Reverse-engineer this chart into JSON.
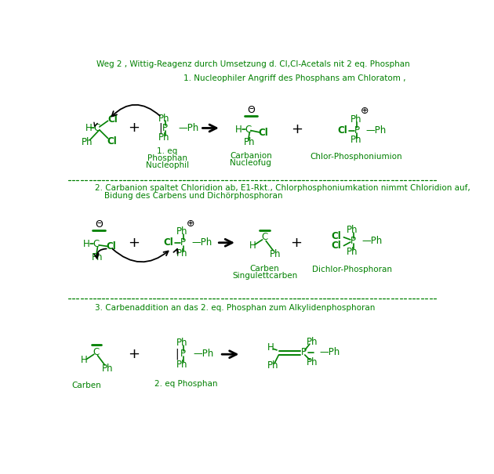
{
  "title": "Weg 2 , Wittig-Reagenz durch Umsetzung d. Cl,Cl-Acetals nit 2 eq. Phosphan",
  "bg_color": "#ffffff",
  "green": "#008000",
  "black": "#000000",
  "s1_header": "1. Nucleophiler Angriff des Phosphans am Chloratom ,",
  "s2_header1": "2. Carbanion spaltet Chloridion ab, E1-Rkt., Chlorphosphoniumkation nimmt Chloridion auf,",
  "s2_header2": "Bidung des Carbens und Dichörphosphoran",
  "s3_header": "3. Carbenaddition an das 2. eq. Phosphan zum Alkylidenphosphoran",
  "lbl_1eq": "1. eq",
  "lbl_phosphan": "Phosphan",
  "lbl_nucleophil": "Nucleophil",
  "lbl_carbanion": "Carbanion",
  "lbl_nucleofug": "Nucleofug",
  "lbl_chlorphosphoniumion": "Chlor-Phosphoniumion",
  "lbl_carben": "Carben",
  "lbl_singulettcarben": "Singulettcarben",
  "lbl_dichlorphosphoran": "Dichlor-Phosphoran",
  "lbl_carben3": "Carben",
  "lbl_2eq_phosphan": "2. eq Phosphan"
}
